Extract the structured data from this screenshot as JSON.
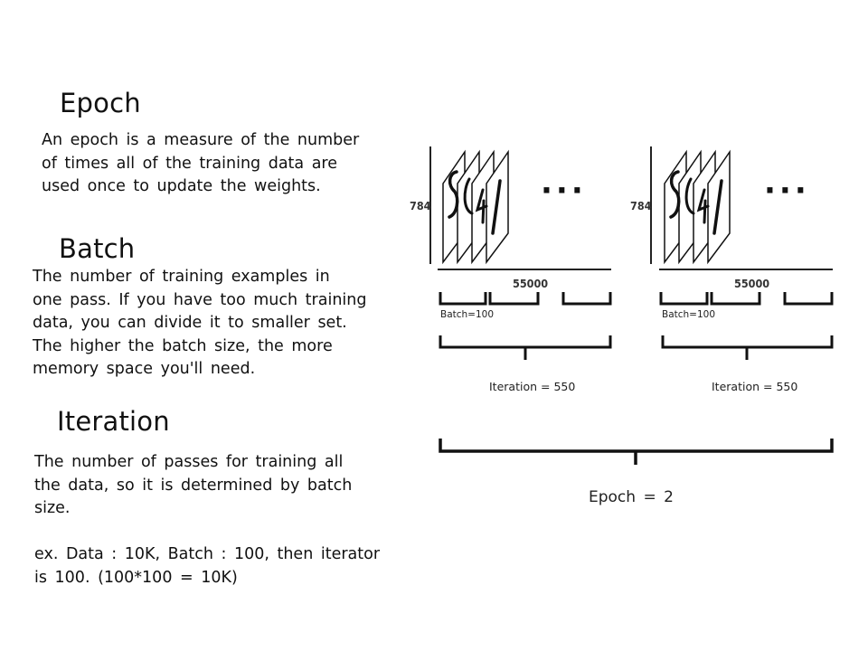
{
  "sections": {
    "epoch": {
      "title": "Epoch",
      "lines": [
        "An epoch is a measure of the number",
        "of times all of the training data are",
        "used once to update the weights."
      ]
    },
    "batch": {
      "title": "Batch",
      "lines": [
        "The number of training examples in",
        "one pass. If you have too much training",
        "data, you can divide it to smaller set.",
        "The higher the batch size, the more",
        "memory space you'll need."
      ]
    },
    "iteration": {
      "title": "Iteration",
      "lines": [
        "The number of passes for training all",
        "the data, so it is determined by batch",
        "size."
      ],
      "example_lines": [
        "ex. Data : 10K, Batch : 100, then iterator",
        "is 100. (100*100 = 10K)"
      ]
    }
  },
  "diagram": {
    "height_label": "784",
    "width_label": "55000",
    "ellipsis": "···",
    "batch_label": "Batch=100",
    "iteration_label": "Iteration = 550",
    "epoch_label": "Epoch = 2"
  }
}
